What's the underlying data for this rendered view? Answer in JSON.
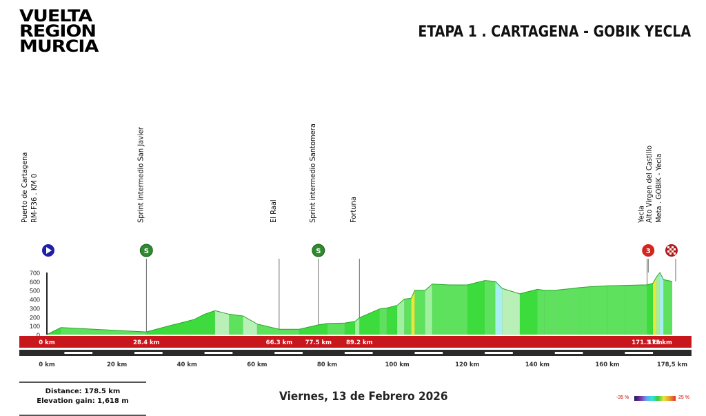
{
  "logo": {
    "lines": [
      "VUELTA",
      "REGION",
      "MURCIA"
    ]
  },
  "stage_title": "ETAPA 1 . CARTAGENA - GOBIK YECLA",
  "date": "Viernes, 13 de Febrero 2026",
  "summary": {
    "distance": "Distance: 178.5 km",
    "elevation_gain": "Elevation gain: 1,618 m"
  },
  "gradient_legend": {
    "min_label": "-35 %",
    "max_label": "25 %"
  },
  "chart_data": {
    "type": "area",
    "title": "",
    "xlabel": "",
    "ylabel": "",
    "xlim": [
      0,
      178.5
    ],
    "ylim": [
      0,
      700
    ],
    "y_ticks": [
      0,
      100,
      200,
      300,
      400,
      500,
      600,
      700
    ],
    "x_ticks": [
      {
        "km": 0,
        "label": "0 km"
      },
      {
        "km": 20,
        "label": "20 km"
      },
      {
        "km": 40,
        "label": "40 km"
      },
      {
        "km": 60,
        "label": "60 km"
      },
      {
        "km": 80,
        "label": "80 km"
      },
      {
        "km": 100,
        "label": "100 km"
      },
      {
        "km": 120,
        "label": "120 km"
      },
      {
        "km": 140,
        "label": "140 km"
      },
      {
        "km": 160,
        "label": "160 km"
      },
      {
        "km": 178.5,
        "label": "178,5 km"
      }
    ],
    "series": [
      {
        "x": [
          0,
          4,
          28.4,
          35,
          42,
          45,
          48,
          52,
          56,
          60,
          66.3,
          72,
          77.5,
          80,
          85,
          88,
          89.2,
          95,
          97,
          100,
          102,
          104,
          105,
          108,
          110,
          115,
          120,
          125,
          128,
          130,
          135,
          140,
          142,
          145,
          150,
          152,
          155,
          160,
          165,
          170,
          171.3,
          173,
          174,
          175,
          176,
          178.5
        ],
        "y": [
          0,
          80,
          30,
          100,
          170,
          230,
          270,
          230,
          210,
          120,
          60,
          60,
          110,
          125,
          130,
          150,
          190,
          290,
          300,
          330,
          400,
          410,
          500,
          500,
          570,
          560,
          560,
          610,
          600,
          520,
          460,
          510,
          500,
          500,
          520,
          530,
          540,
          550,
          555,
          560,
          560,
          580,
          650,
          700,
          620,
          600
        ]
      }
    ],
    "waypoints": [
      {
        "km": 0,
        "label_lines": [
          "Puerto de Cartagena",
          "RM-F36 . KM 0"
        ],
        "marker": "start",
        "marker_text": ""
      },
      {
        "km": 28.4,
        "label_lines": [
          "Sprint intermedio San Javier"
        ],
        "marker": "sprint",
        "marker_text": "S"
      },
      {
        "km": 66.3,
        "label_lines": [
          "El Raal"
        ],
        "marker": "none",
        "marker_text": ""
      },
      {
        "km": 77.5,
        "label_lines": [
          "Sprint intermedio Santomera"
        ],
        "marker": "sprint",
        "marker_text": "S"
      },
      {
        "km": 89.2,
        "label_lines": [
          "Fortuna"
        ],
        "marker": "none",
        "marker_text": ""
      },
      {
        "km": 171.3,
        "label_lines": [
          "Yecla"
        ],
        "marker": "none",
        "marker_text": ""
      },
      {
        "km": 175,
        "label_lines": [
          "Alto Virgen del Castillo",
          "Meta . GOBIK - Yecla"
        ],
        "marker": "climb",
        "marker_text": "3"
      },
      {
        "km": 178.5,
        "label_lines": [],
        "marker": "finish",
        "marker_text": ""
      }
    ],
    "km_band_labels": [
      {
        "km": 0,
        "label": "0 km"
      },
      {
        "km": 28.4,
        "label": "28.4 km"
      },
      {
        "km": 66.3,
        "label": "66.3 km"
      },
      {
        "km": 77.5,
        "label": "77.5 km"
      },
      {
        "km": 89.2,
        "label": "89.2 km"
      },
      {
        "km": 171.3,
        "label": "171.3 km"
      },
      {
        "km": 175,
        "label": "175 km"
      }
    ],
    "colors": {
      "profile_green": "#3ddc3d",
      "band_red": "#c8161d",
      "start_blue": "#1f1fa8",
      "sprint_green": "#2f8a2f",
      "climb_red": "#d3261e"
    }
  }
}
